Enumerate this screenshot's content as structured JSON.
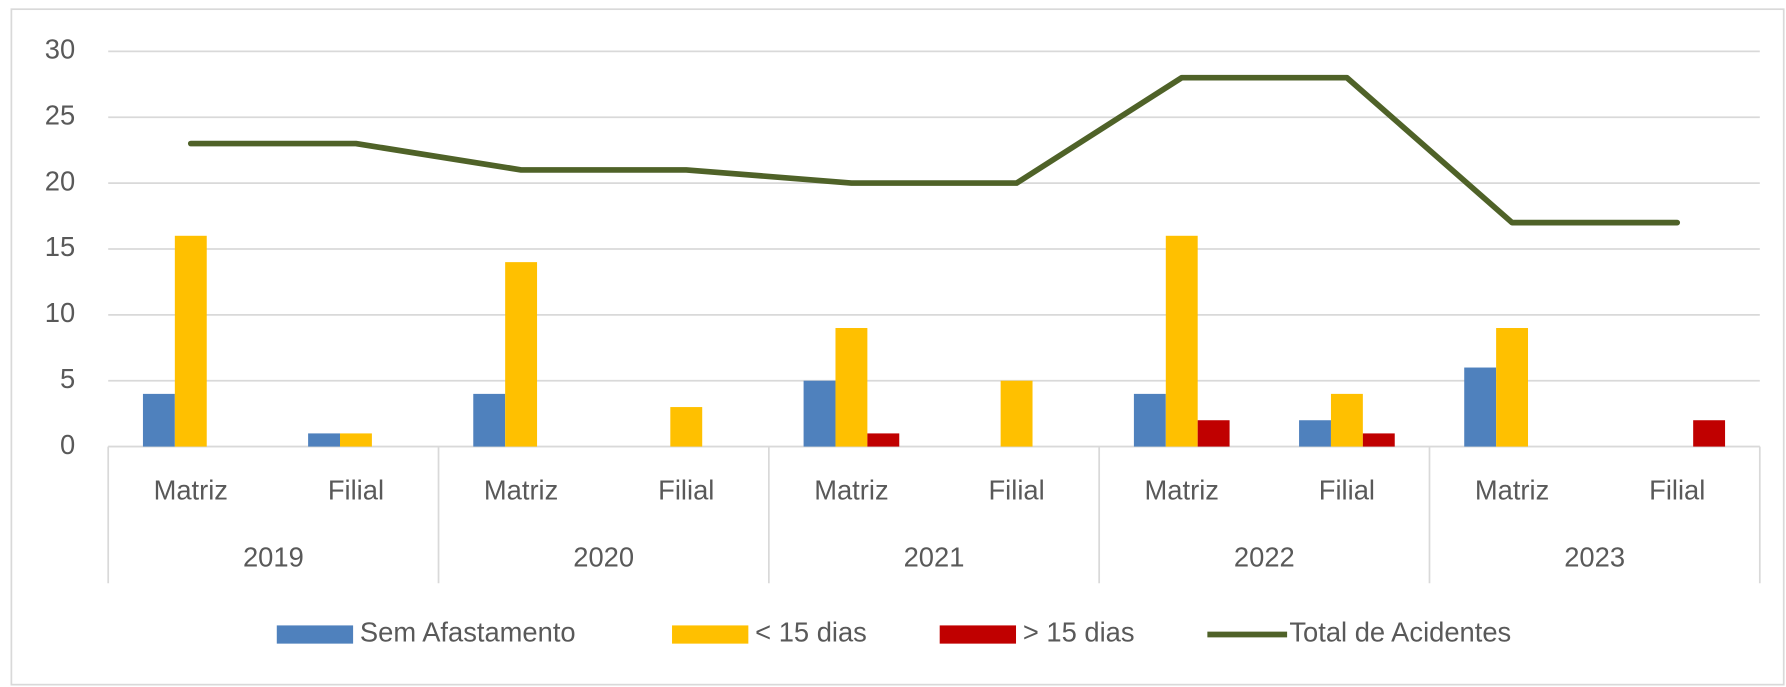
{
  "chart_data": {
    "type": "bar",
    "categories": [
      "Matriz",
      "Filial",
      "Matriz",
      "Filial",
      "Matriz",
      "Filial",
      "Matriz",
      "Filial",
      "Matriz",
      "Filial"
    ],
    "groups": [
      "2019",
      "2020",
      "2021",
      "2022",
      "2023"
    ],
    "series": [
      {
        "name": "Sem Afastamento",
        "color": "#4f81bd",
        "type": "bar",
        "values": [
          4,
          1,
          4,
          0,
          5,
          0,
          4,
          2,
          6,
          0
        ]
      },
      {
        "name": "< 15 dias",
        "color": "#ffc000",
        "type": "bar",
        "values": [
          16,
          1,
          14,
          3,
          9,
          5,
          16,
          4,
          9,
          0
        ]
      },
      {
        "name": "> 15 dias",
        "color": "#c00000",
        "type": "bar",
        "values": [
          0,
          0,
          0,
          0,
          1,
          0,
          2,
          1,
          0,
          2
        ]
      },
      {
        "name": "Total de Acidentes",
        "color": "#4f6228",
        "type": "line",
        "values": [
          23,
          23,
          21,
          21,
          20,
          20,
          28,
          28,
          17,
          17
        ]
      }
    ],
    "ylim": [
      0,
      30
    ],
    "yticks": [
      0,
      5,
      10,
      15,
      20,
      25,
      30
    ],
    "grid": true,
    "legend": "bottom"
  }
}
